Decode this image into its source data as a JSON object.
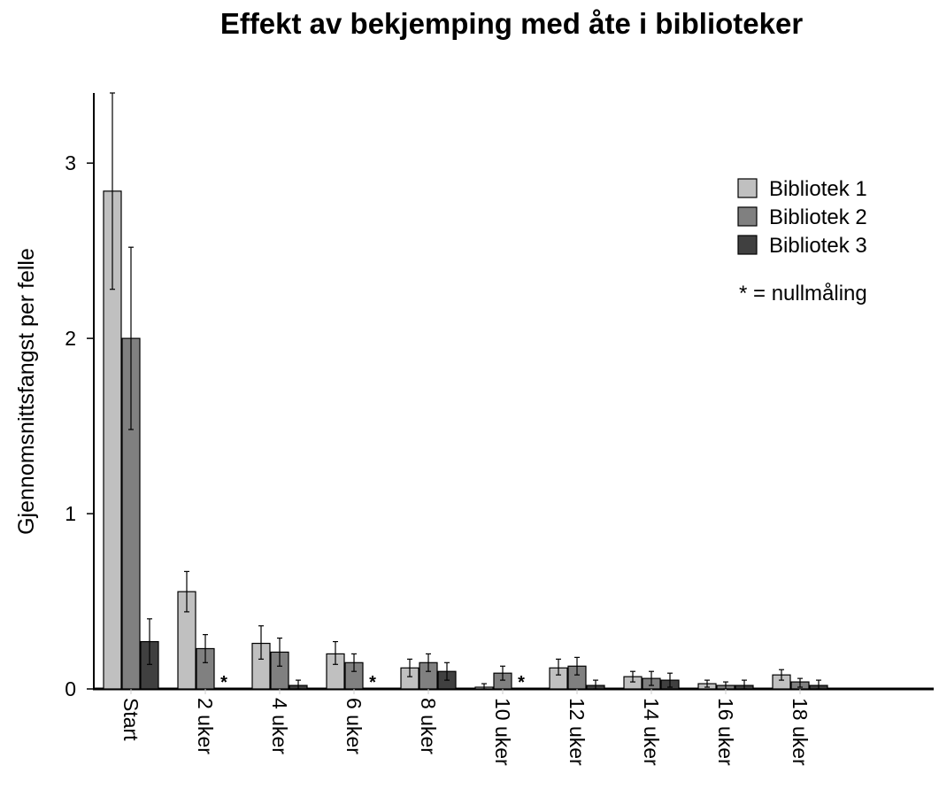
{
  "chart_data": {
    "type": "bar",
    "title": "Effekt av bekjemping med åte i biblioteker",
    "xlabel": "",
    "ylabel": "Gjennomsnittsfangst per felle",
    "ylim": [
      0,
      3.4
    ],
    "yticks": [
      0,
      1,
      2,
      3
    ],
    "grid": false,
    "legend_position": "top-right",
    "note": "* = nullmåling",
    "categories": [
      "Start",
      "2 uker",
      "4 uker",
      "6 uker",
      "8 uker",
      "10 uker",
      "12 uker",
      "14 uker",
      "16 uker",
      "18 uker"
    ],
    "series": [
      {
        "name": "Bibliotek 1",
        "color": "#c0c0c0",
        "values": [
          2.84,
          0.555,
          0.26,
          0.2,
          0.12,
          0.01,
          0.12,
          0.07,
          0.03,
          0.08
        ],
        "err_low": [
          2.28,
          0.44,
          0.17,
          0.14,
          0.07,
          0.0,
          0.08,
          0.04,
          0.01,
          0.05
        ],
        "err_high": [
          3.4,
          0.67,
          0.36,
          0.27,
          0.17,
          0.03,
          0.17,
          0.1,
          0.05,
          0.11
        ]
      },
      {
        "name": "Bibliotek 2",
        "color": "#808080",
        "values": [
          2.0,
          0.23,
          0.21,
          0.15,
          0.15,
          0.09,
          0.13,
          0.06,
          0.02,
          0.04
        ],
        "err_low": [
          1.48,
          0.15,
          0.13,
          0.1,
          0.1,
          0.05,
          0.08,
          0.02,
          0.0,
          0.01
        ],
        "err_high": [
          2.52,
          0.31,
          0.29,
          0.2,
          0.2,
          0.13,
          0.18,
          0.1,
          0.04,
          0.06
        ]
      },
      {
        "name": "Bibliotek 3",
        "color": "#404040",
        "values": [
          0.27,
          null,
          0.02,
          null,
          0.1,
          null,
          0.02,
          0.05,
          0.02,
          0.02
        ],
        "err_low": [
          0.14,
          null,
          0.0,
          null,
          0.05,
          null,
          0.0,
          0.01,
          0.0,
          0.0
        ],
        "err_high": [
          0.4,
          null,
          0.05,
          null,
          0.15,
          null,
          0.05,
          0.09,
          0.05,
          0.05
        ]
      }
    ],
    "null_markers": [
      {
        "category": "2 uker",
        "series": "Bibliotek 3",
        "label": "*"
      },
      {
        "category": "6 uker",
        "series": "Bibliotek 3",
        "label": "*"
      },
      {
        "category": "10 uker",
        "series": "Bibliotek 3",
        "label": "*"
      }
    ]
  }
}
